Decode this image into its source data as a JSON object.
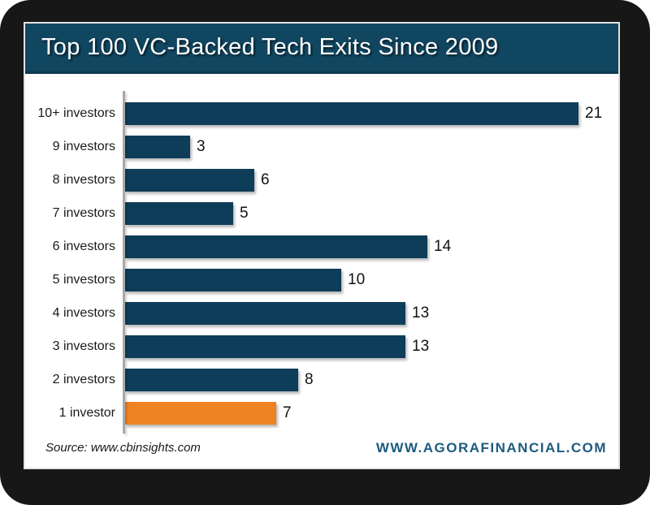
{
  "chart": {
    "title": "Top 100 VC-Backed Tech Exits Since 2009"
  },
  "chart_data": {
    "type": "bar",
    "orientation": "horizontal",
    "title": "Top 100 VC-Backed Tech Exits Since 2009",
    "categories": [
      "10+ investors",
      "9 investors",
      "8 investors",
      "7 investors",
      "6 investors",
      "5 investors",
      "4 investors",
      "3 investors",
      "2 investors",
      "1 investor"
    ],
    "values": [
      21,
      3,
      6,
      5,
      14,
      10,
      13,
      13,
      8,
      7
    ],
    "xlabel": "",
    "ylabel": "",
    "xlim": [
      0,
      21
    ],
    "grid": false,
    "legend": false,
    "value_labels": true,
    "bar_color": "#0d3d58",
    "highlight_color": "#ee8322",
    "highlight_index": 9
  },
  "footer": {
    "source": "Source: www.cbinsights.com",
    "brand_url": "WWW.AGORAFINANCIAL.COM"
  },
  "colors": {
    "frame": "#171717",
    "header_bg": "#114660",
    "header_edge": "#0b394f",
    "bar_navy": "#0d3d58",
    "bar_orange": "#ee8322",
    "axis_gray": "#a8a8a8",
    "brand_text": "#1d5b80"
  }
}
